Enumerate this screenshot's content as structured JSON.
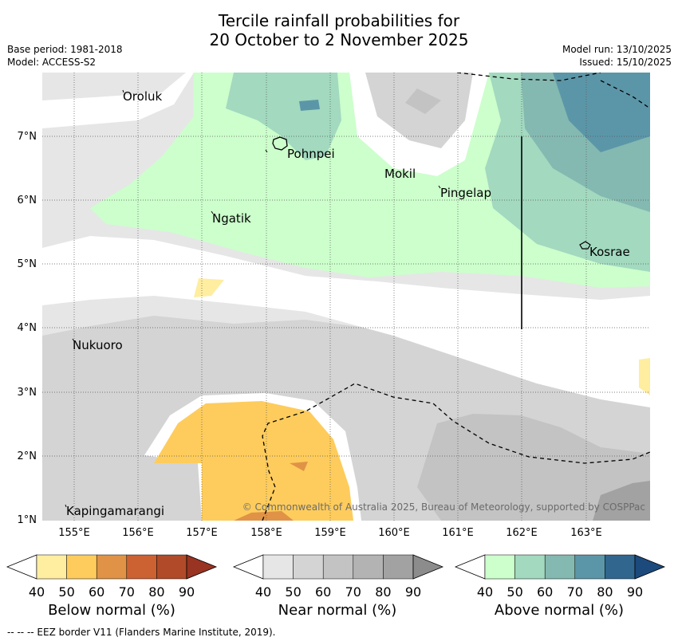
{
  "header": {
    "title_line1": "Tercile rainfall probabilities for",
    "title_line2": "20 October to 2 November 2025",
    "base_period": "Base period: 1981-2018",
    "model": "Model: ACCESS-S2",
    "model_run": "Model run: 13/10/2025",
    "issued": "Issued: 15/10/2025"
  },
  "map": {
    "places": {
      "oroluk": "Oroluk",
      "pohnpei": "Pohnpei",
      "mokil": "Mokil",
      "pingelap": "Pingelap",
      "ngatik": "Ngatik",
      "kosrae": "Kosrae",
      "nukuoro": "Nukuoro",
      "kapingamarangi": "Kapingamarangi"
    },
    "copyright": "© Commonwealth of Australia 2025, Bureau of Meteorology, supported by COSPPac",
    "lat_ticks": [
      "7°N",
      "6°N",
      "5°N",
      "4°N",
      "3°N",
      "2°N",
      "1°N"
    ],
    "lon_ticks": [
      "155°E",
      "156°E",
      "157°E",
      "158°E",
      "159°E",
      "160°E",
      "161°E",
      "162°E",
      "163°E"
    ]
  },
  "legend": {
    "tick_labels": [
      "40",
      "50",
      "60",
      "70",
      "80",
      "90"
    ],
    "below_title": "Below normal (%)",
    "near_title": "Near normal (%)",
    "above_title": "Above normal (%)",
    "below_colors": [
      "#ffeda0",
      "#fecc5c",
      "#e09346",
      "#cc6132",
      "#b04a28",
      "#993322"
    ],
    "near_colors": [
      "#e6e6e6",
      "#d4d4d4",
      "#c3c3c3",
      "#b3b3b3",
      "#a2a2a2",
      "#8c8c8c"
    ],
    "above_colors": [
      "#ccffcc",
      "#a2d9bf",
      "#84b9b1",
      "#5b96a8",
      "#31668f",
      "#1c4a7d"
    ]
  },
  "footnote": "-- -- -- EEZ border V11 (Flanders Marine Institute, 2019)."
}
